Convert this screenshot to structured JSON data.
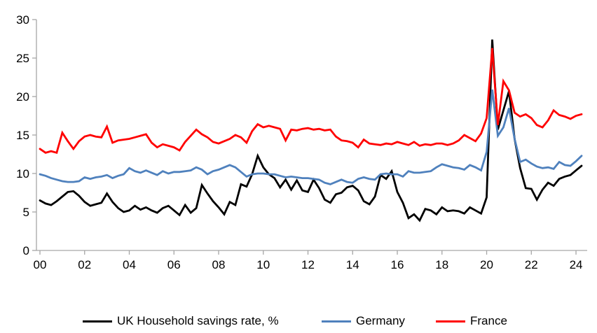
{
  "chart_data": {
    "type": "line",
    "title": "",
    "x_axis": {
      "tick_labels": [
        "00",
        "02",
        "04",
        "06",
        "08",
        "10",
        "12",
        "14",
        "16",
        "18",
        "20",
        "22",
        "24"
      ],
      "start_year": 2000,
      "frequency": "quarterly",
      "points": 98
    },
    "y_axis": {
      "ticks": [
        0,
        5,
        10,
        15,
        20,
        25,
        30
      ],
      "min": 0,
      "max": 30
    },
    "grid": false,
    "legend_position": "bottom",
    "axis_color": "#A6A6A6",
    "text_color": "#000000",
    "background_color": "#FFFFFF",
    "series": [
      {
        "name": "UK Household savings rate, %",
        "color": "#000000",
        "values": [
          6.5,
          6.1,
          5.9,
          6.4,
          7.0,
          7.6,
          7.7,
          7.1,
          6.3,
          5.8,
          6.0,
          6.2,
          7.4,
          6.3,
          5.5,
          5.0,
          5.2,
          5.8,
          5.3,
          5.6,
          5.2,
          4.9,
          5.5,
          5.8,
          5.2,
          4.6,
          5.9,
          4.9,
          5.5,
          8.5,
          7.4,
          6.4,
          5.6,
          4.7,
          6.3,
          5.9,
          8.6,
          8.3,
          9.9,
          12.3,
          10.8,
          9.9,
          9.4,
          8.2,
          9.2,
          7.9,
          9.1,
          7.8,
          7.6,
          9.2,
          8.1,
          6.6,
          6.2,
          7.3,
          7.5,
          8.2,
          8.4,
          7.8,
          6.4,
          6.0,
          7.0,
          9.8,
          9.3,
          10.3,
          7.6,
          6.2,
          4.2,
          4.7,
          3.9,
          5.4,
          5.2,
          4.7,
          5.6,
          5.1,
          5.2,
          5.1,
          4.8,
          5.6,
          5.2,
          4.8,
          6.9,
          27.4,
          15.7,
          18.2,
          20.7,
          14.5,
          10.7,
          8.1,
          8.0,
          6.6,
          7.9,
          8.8,
          8.4,
          9.3,
          9.6,
          9.8,
          10.4,
          11.0
        ]
      },
      {
        "name": "Germany",
        "color": "#4F81BD",
        "values": [
          9.9,
          9.7,
          9.4,
          9.2,
          9.0,
          8.9,
          8.9,
          9.0,
          9.5,
          9.3,
          9.5,
          9.6,
          9.8,
          9.4,
          9.7,
          9.9,
          10.7,
          10.3,
          10.1,
          10.4,
          10.1,
          9.8,
          10.3,
          10.0,
          10.2,
          10.2,
          10.3,
          10.4,
          10.8,
          10.5,
          9.9,
          10.3,
          10.5,
          10.8,
          11.1,
          10.8,
          10.2,
          9.6,
          9.9,
          10.0,
          10.0,
          9.9,
          9.9,
          9.7,
          9.5,
          9.6,
          9.5,
          9.4,
          9.4,
          9.3,
          9.2,
          8.8,
          8.6,
          8.9,
          9.2,
          8.9,
          8.8,
          9.3,
          9.5,
          9.3,
          9.2,
          9.9,
          10.0,
          9.9,
          9.9,
          9.6,
          10.3,
          10.1,
          10.1,
          10.2,
          10.3,
          10.8,
          11.2,
          11.0,
          10.8,
          10.7,
          10.5,
          11.1,
          10.8,
          10.4,
          12.8,
          20.9,
          14.9,
          16.0,
          18.5,
          14.5,
          11.5,
          11.8,
          11.3,
          10.9,
          10.7,
          10.8,
          10.6,
          11.5,
          11.1,
          11.0,
          11.6,
          12.3
        ]
      },
      {
        "name": "France",
        "color": "#FF0000",
        "values": [
          13.2,
          12.7,
          12.9,
          12.7,
          15.3,
          14.2,
          13.2,
          14.2,
          14.8,
          15.0,
          14.8,
          14.7,
          16.1,
          14.0,
          14.3,
          14.4,
          14.5,
          14.7,
          14.9,
          15.1,
          14.0,
          13.4,
          13.8,
          13.6,
          13.4,
          13.0,
          14.1,
          14.9,
          15.7,
          15.1,
          14.7,
          14.1,
          13.9,
          14.2,
          14.5,
          15.0,
          14.7,
          14.0,
          15.5,
          16.4,
          16.0,
          16.2,
          16.0,
          15.8,
          14.3,
          15.7,
          15.6,
          15.8,
          15.9,
          15.7,
          15.8,
          15.6,
          15.7,
          14.8,
          14.3,
          14.2,
          14.0,
          13.4,
          14.4,
          13.9,
          13.8,
          13.7,
          13.9,
          13.8,
          14.1,
          13.9,
          13.7,
          14.1,
          13.6,
          13.8,
          13.7,
          13.9,
          13.9,
          13.7,
          13.9,
          14.3,
          15.0,
          14.6,
          14.2,
          15.2,
          17.2,
          26.3,
          16.3,
          22.0,
          20.8,
          17.9,
          17.4,
          17.7,
          17.2,
          16.3,
          16.0,
          16.9,
          18.2,
          17.6,
          17.4,
          17.1,
          17.5,
          17.7
        ]
      }
    ]
  }
}
